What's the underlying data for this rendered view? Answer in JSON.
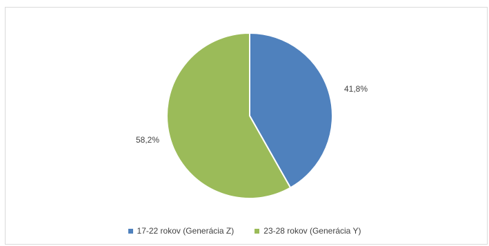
{
  "chart_data": {
    "type": "pie",
    "title": "",
    "categories": [
      "17-22 rokov (Generácia Z)",
      "23-28 rokov (Generácia Y)"
    ],
    "values": [
      41.8,
      58.2
    ],
    "value_labels": [
      "41,8%",
      "58,2%"
    ],
    "colors": [
      "#4f81bd",
      "#9bbb59"
    ],
    "legend_position": "bottom"
  }
}
